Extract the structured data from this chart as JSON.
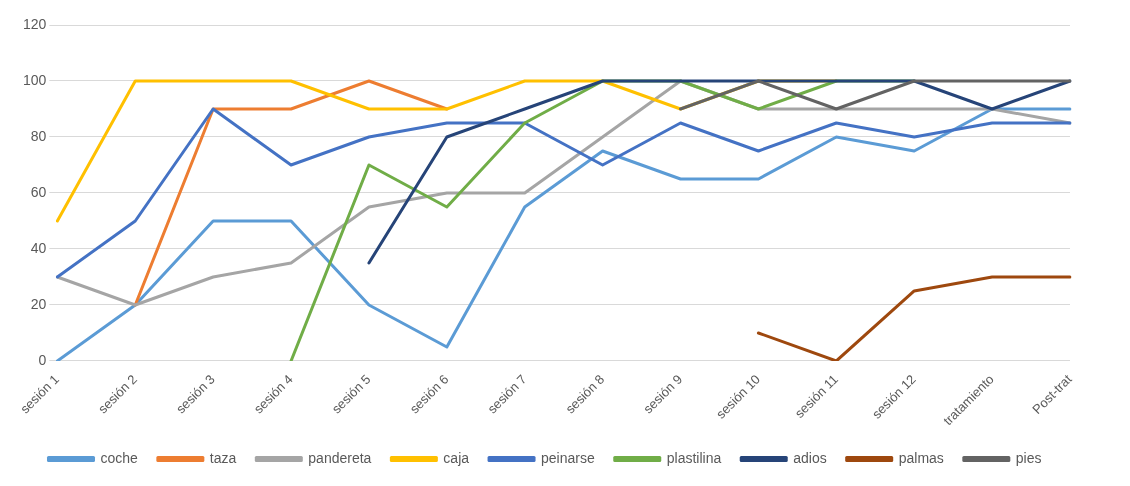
{
  "chart_data": {
    "type": "line",
    "categories": [
      "sesión 1",
      "sesión 2",
      "sesión 3",
      "sesión 4",
      "sesión 5",
      "sesión 6",
      "sesión 7",
      "sesión 8",
      "sesión 9",
      "sesión 10",
      "sesión 11",
      "sesión 12",
      "tratamiento",
      "Post-trat"
    ],
    "ylim": [
      0,
      120
    ],
    "yticks": [
      0,
      20,
      40,
      60,
      80,
      100,
      120
    ],
    "grid": "y",
    "legend": "bottom",
    "marker": "none",
    "series": [
      {
        "name": "coche",
        "color": "#5b9bd5",
        "values": [
          0,
          20,
          50,
          50,
          20,
          5,
          55,
          75,
          65,
          65,
          80,
          75,
          90,
          90
        ]
      },
      {
        "name": "taza",
        "color": "#ed7d31",
        "values": [
          null,
          20,
          90,
          90,
          100,
          90,
          null,
          null,
          null,
          null,
          null,
          null,
          null,
          null
        ]
      },
      {
        "name": "pandereta",
        "color": "#a5a5a5",
        "values": [
          30,
          20,
          30,
          35,
          55,
          60,
          60,
          80,
          100,
          90,
          90,
          90,
          90,
          85
        ]
      },
      {
        "name": "caja",
        "color": "#ffc000",
        "values": [
          50,
          100,
          100,
          100,
          90,
          90,
          100,
          100,
          90,
          100,
          100,
          null,
          null,
          null
        ]
      },
      {
        "name": "peinarse",
        "color": "#4472c4",
        "values": [
          30,
          50,
          90,
          70,
          80,
          85,
          85,
          70,
          85,
          75,
          85,
          80,
          85,
          85
        ]
      },
      {
        "name": "plastilina",
        "color": "#70ad47",
        "values": [
          null,
          null,
          null,
          0,
          70,
          55,
          85,
          100,
          100,
          90,
          100,
          100,
          null,
          null
        ]
      },
      {
        "name": "adios",
        "color": "#264478",
        "values": [
          null,
          null,
          null,
          null,
          35,
          80,
          90,
          100,
          100,
          100,
          100,
          100,
          90,
          100
        ]
      },
      {
        "name": "palmas",
        "color": "#9e480e",
        "values": [
          null,
          null,
          null,
          null,
          null,
          null,
          null,
          null,
          null,
          10,
          0,
          25,
          30,
          30
        ]
      },
      {
        "name": "pies",
        "color": "#636363",
        "values": [
          null,
          null,
          null,
          null,
          null,
          null,
          null,
          null,
          90,
          100,
          90,
          100,
          100,
          100
        ]
      }
    ]
  }
}
